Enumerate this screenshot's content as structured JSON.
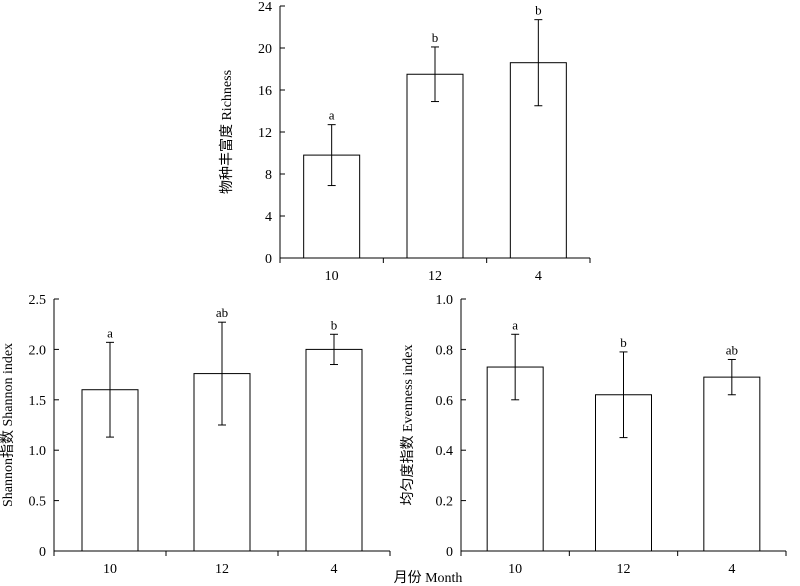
{
  "x_title": "月份 Month",
  "chart_data": [
    {
      "type": "bar",
      "ylabel": "物种丰富度 Richness",
      "categories": [
        "10",
        "12",
        "4"
      ],
      "values": [
        9.8,
        17.5,
        18.6
      ],
      "errors": [
        2.9,
        2.6,
        4.1
      ],
      "letters": [
        "a",
        "b",
        "b"
      ],
      "ylim": [
        0,
        24
      ],
      "yticks": [
        "0",
        "4",
        "8",
        "12",
        "16",
        "20",
        "24"
      ],
      "ytick_values": [
        0,
        4,
        8,
        12,
        16,
        20,
        24
      ]
    },
    {
      "type": "bar",
      "ylabel": "Shannon指数 Shannon index",
      "categories": [
        "10",
        "12",
        "4"
      ],
      "values": [
        1.6,
        1.76,
        2.0
      ],
      "errors": [
        0.47,
        0.51,
        0.15
      ],
      "letters": [
        "a",
        "ab",
        "b"
      ],
      "ylim": [
        0,
        2.5
      ],
      "yticks": [
        "0",
        "0.5",
        "1.0",
        "1.5",
        "2.0",
        "2.5"
      ],
      "ytick_values": [
        0,
        0.5,
        1.0,
        1.5,
        2.0,
        2.5
      ]
    },
    {
      "type": "bar",
      "ylabel": "均匀度指数 Evenness index",
      "categories": [
        "10",
        "12",
        "4"
      ],
      "values": [
        0.73,
        0.62,
        0.69
      ],
      "errors": [
        0.13,
        0.17,
        0.07
      ],
      "letters": [
        "a",
        "b",
        "ab"
      ],
      "ylim": [
        0,
        1.0
      ],
      "yticks": [
        "0",
        "0.2",
        "0.4",
        "0.6",
        "0.8",
        "1.0"
      ],
      "ytick_values": [
        0,
        0.2,
        0.4,
        0.6,
        0.8,
        1.0
      ]
    }
  ]
}
